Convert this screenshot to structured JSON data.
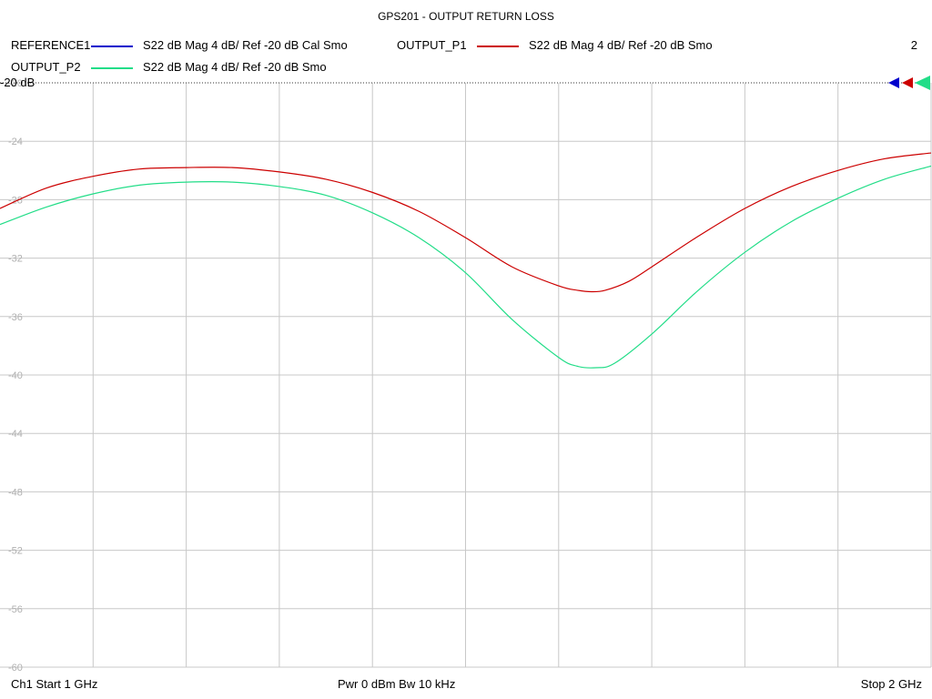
{
  "title": "GPS201 - OUTPUT RETURN LOSS",
  "channel_number": "2",
  "ref_label": "-20 dB",
  "legend": [
    {
      "name": "REFERENCE1",
      "desc": "S22  dB Mag  4 dB/ Ref -20 dB  Cal Smo",
      "color": "#0000cc"
    },
    {
      "name": "OUTPUT_P1",
      "desc": "S22  dB Mag  4 dB/ Ref -20 dB  Smo",
      "color": "#cc0000"
    },
    {
      "name": "OUTPUT_P2",
      "desc": "S22  dB Mag  4 dB/ Ref -20 dB  Smo",
      "color": "#22dd88"
    }
  ],
  "footer": {
    "start": "Ch1  Start  1 GHz",
    "power": "Pwr  0 dBm  Bw  10 kHz",
    "stop": "Stop  2 GHz"
  },
  "chart_data": {
    "type": "line",
    "title": "GPS201 - OUTPUT RETURN LOSS",
    "xlim": [
      1,
      2
    ],
    "ylim": [
      -60,
      -20
    ],
    "yticks": [
      -20,
      -24,
      -28,
      -32,
      -36,
      -40,
      -44,
      -48,
      -52,
      -56,
      -60
    ],
    "x_divisions": 10,
    "grid": true,
    "series": [
      {
        "name": "OUTPUT_P1",
        "color": "#cc0000",
        "x": [
          1.0,
          1.05,
          1.1,
          1.15,
          1.2,
          1.25,
          1.3,
          1.35,
          1.4,
          1.45,
          1.5,
          1.55,
          1.6,
          1.62,
          1.635,
          1.65,
          1.675,
          1.7,
          1.75,
          1.8,
          1.85,
          1.9,
          1.95,
          2.0
        ],
        "y": [
          -28.6,
          -27.2,
          -26.4,
          -25.9,
          -25.8,
          -25.8,
          -26.1,
          -26.6,
          -27.5,
          -28.8,
          -30.6,
          -32.6,
          -33.9,
          -34.2,
          -34.3,
          -34.2,
          -33.6,
          -32.6,
          -30.5,
          -28.6,
          -27.1,
          -26.0,
          -25.2,
          -24.8
        ]
      },
      {
        "name": "OUTPUT_P2",
        "color": "#22dd88",
        "x": [
          1.0,
          1.05,
          1.1,
          1.15,
          1.2,
          1.25,
          1.3,
          1.35,
          1.4,
          1.45,
          1.5,
          1.55,
          1.6,
          1.62,
          1.64,
          1.66,
          1.7,
          1.75,
          1.8,
          1.85,
          1.9,
          1.95,
          2.0
        ],
        "y": [
          -29.7,
          -28.5,
          -27.6,
          -27.0,
          -26.8,
          -26.8,
          -27.1,
          -27.7,
          -28.9,
          -30.6,
          -33.0,
          -36.2,
          -38.8,
          -39.4,
          -39.5,
          -39.2,
          -37.2,
          -34.2,
          -31.6,
          -29.5,
          -27.9,
          -26.6,
          -25.7
        ]
      }
    ]
  }
}
